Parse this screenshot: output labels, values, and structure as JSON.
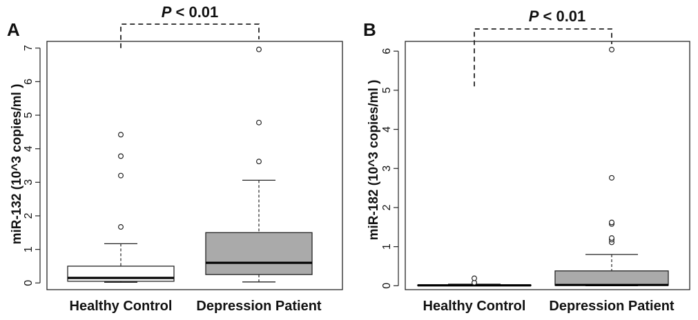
{
  "chart_data": [
    {
      "type": "boxplot",
      "panel": "A",
      "ylabel": "miR-132 (10^3 copies/ml )",
      "ylim": [
        -0.2,
        7.2
      ],
      "yticks": [
        0,
        1,
        2,
        3,
        4,
        5,
        6,
        7
      ],
      "categories": [
        "Healthy Control",
        "Depression Patient"
      ],
      "annotation": {
        "prefix": "P",
        "rest": " < 0.01"
      },
      "bracket_bottom": 7.0,
      "bracket_top_offset": 0.55,
      "boxes": [
        {
          "name": "Healthy Control",
          "fill": "#ffffff",
          "q1": 0.05,
          "median": 0.15,
          "q3": 0.5,
          "whisker_low": 0.02,
          "whisker_high": 1.17,
          "outliers": [
            1.67,
            3.2,
            3.78,
            4.42
          ]
        },
        {
          "name": "Depression Patient",
          "fill": "#aaaaaa",
          "q1": 0.25,
          "median": 0.6,
          "q3": 1.5,
          "whisker_low": 0.03,
          "whisker_high": 3.06,
          "outliers": [
            3.62,
            4.78,
            6.96
          ]
        }
      ]
    },
    {
      "type": "boxplot",
      "panel": "B",
      "ylabel": "miR-182 (10^3 copies/ml )",
      "ylim": [
        -0.1,
        6.25
      ],
      "yticks": [
        0,
        1,
        2,
        3,
        4,
        5,
        6
      ],
      "categories": [
        "Healthy Control",
        "Depression Patient"
      ],
      "annotation": {
        "prefix": "P",
        "rest": " < 0.01"
      },
      "bracket_bottom": 5.1,
      "bracket_top_offset": 1.1,
      "boxes": [
        {
          "name": "Healthy Control",
          "fill": "#ffffff",
          "q1": 0.0,
          "median": 0.01,
          "q3": 0.02,
          "whisker_low": 0.0,
          "whisker_high": 0.04,
          "outliers": [
            0.08,
            0.19
          ]
        },
        {
          "name": "Depression Patient",
          "fill": "#aaaaaa",
          "q1": 0.01,
          "median": 0.02,
          "q3": 0.38,
          "whisker_low": 0.0,
          "whisker_high": 0.8,
          "outliers": [
            1.11,
            1.18,
            1.22,
            1.58,
            1.62,
            2.76,
            6.04
          ]
        }
      ]
    }
  ]
}
